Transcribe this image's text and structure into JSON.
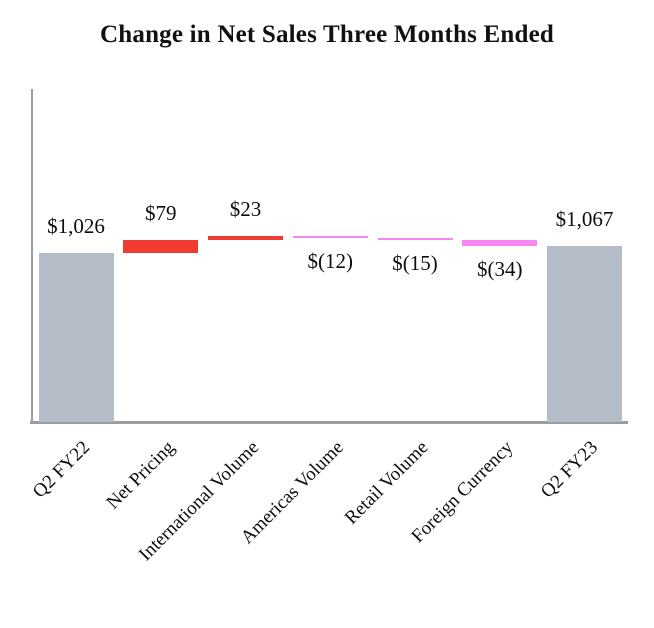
{
  "title": "Change in Net Sales Three Months Ended",
  "chart_data": {
    "type": "bar",
    "subtype": "waterfall",
    "title": "Change in Net Sales Three Months Ended",
    "categories": [
      "Q2 FY22",
      "Net Pricing",
      "International Volume",
      "Americas Volume",
      "Retail Volume",
      "Foreign Currency",
      "Q2 FY23"
    ],
    "values": [
      1026,
      79,
      23,
      -12,
      -15,
      -34,
      1067
    ],
    "bar_roles": [
      "total",
      "increase",
      "increase",
      "decrease",
      "decrease",
      "decrease",
      "total"
    ],
    "value_labels": [
      "$1,026",
      "$79",
      "$23",
      "$(12)",
      "$(15)",
      "$(34)",
      "$1,067"
    ],
    "colors": {
      "total": "#b4bdc7",
      "increase": "#f03b30",
      "decrease": "#f887f3",
      "axis": "#9b9ca0"
    },
    "xlabel": "",
    "ylabel": "",
    "axis_notes": {
      "y_axis_ticks_visible": false,
      "gridlines": false,
      "baseline_value": 0,
      "x_label_rotation_deg": -45,
      "value_label_position": "above positive bars, below negative bars"
    }
  }
}
